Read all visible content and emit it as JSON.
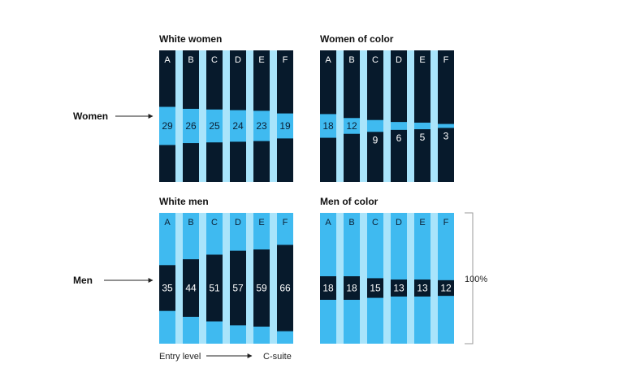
{
  "colors": {
    "light": "#3fbaf0",
    "dark": "#071a2c",
    "divider": "#a9e4fb",
    "text": "#111111"
  },
  "row_labels": {
    "women": "Women",
    "men": "Men"
  },
  "total_label": "100%",
  "footer": {
    "entry": "Entry level",
    "csuite": "C-suite"
  },
  "chart_data": [
    {
      "type": "bar",
      "title": "White women",
      "categories": [
        "A",
        "B",
        "C",
        "D",
        "E",
        "F"
      ],
      "values": [
        29,
        26,
        25,
        24,
        23,
        19
      ],
      "unit": "%",
      "ylim": [
        0,
        100
      ],
      "segment_color": "light",
      "background_color": "dark"
    },
    {
      "type": "bar",
      "title": "Women of color",
      "categories": [
        "A",
        "B",
        "C",
        "D",
        "E",
        "F"
      ],
      "values": [
        18,
        12,
        9,
        6,
        5,
        3
      ],
      "unit": "%",
      "ylim": [
        0,
        100
      ],
      "segment_color": "light",
      "background_color": "dark"
    },
    {
      "type": "bar",
      "title": "White men",
      "categories": [
        "A",
        "B",
        "C",
        "D",
        "E",
        "F"
      ],
      "values": [
        35,
        44,
        51,
        57,
        59,
        66
      ],
      "unit": "%",
      "ylim": [
        0,
        100
      ],
      "segment_color": "dark",
      "background_color": "light"
    },
    {
      "type": "bar",
      "title": "Men of color",
      "categories": [
        "A",
        "B",
        "C",
        "D",
        "E",
        "F"
      ],
      "values": [
        18,
        18,
        15,
        13,
        13,
        12
      ],
      "unit": "%",
      "ylim": [
        0,
        100
      ],
      "segment_color": "dark",
      "background_color": "light"
    }
  ]
}
